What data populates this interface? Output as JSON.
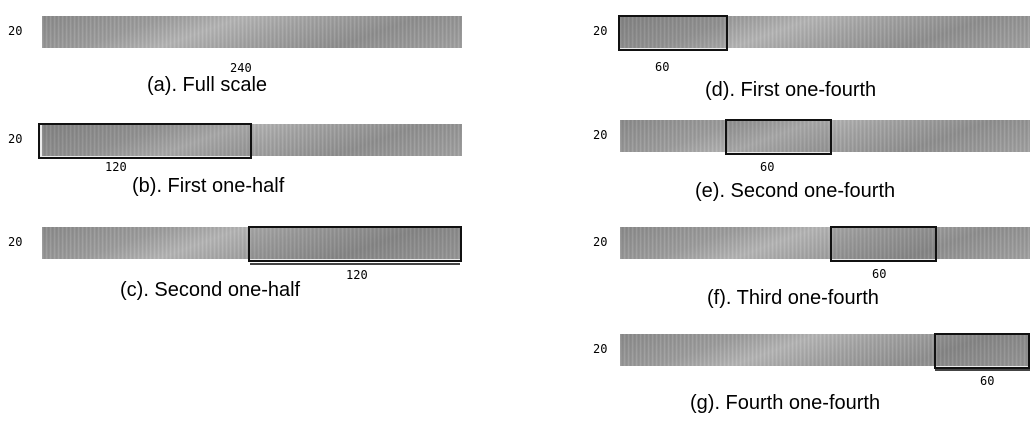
{
  "panels": {
    "a": {
      "height_label": "20",
      "width_label": "240",
      "caption": "(a). Full scale"
    },
    "b": {
      "height_label": "20",
      "width_label": "120",
      "caption": "(b). First one-half"
    },
    "c": {
      "height_label": "20",
      "width_label": "120",
      "caption": "(c). Second one-half"
    },
    "d": {
      "height_label": "20",
      "width_label": "60",
      "caption": "(d). First one-fourth"
    },
    "e": {
      "height_label": "20",
      "width_label": "60",
      "caption": "(e). Second one-fourth"
    },
    "f": {
      "height_label": "20",
      "width_label": "60",
      "caption": "(f). Third one-fourth"
    },
    "g": {
      "height_label": "20",
      "width_label": "60",
      "caption": "(g). Fourth one-fourth"
    }
  }
}
